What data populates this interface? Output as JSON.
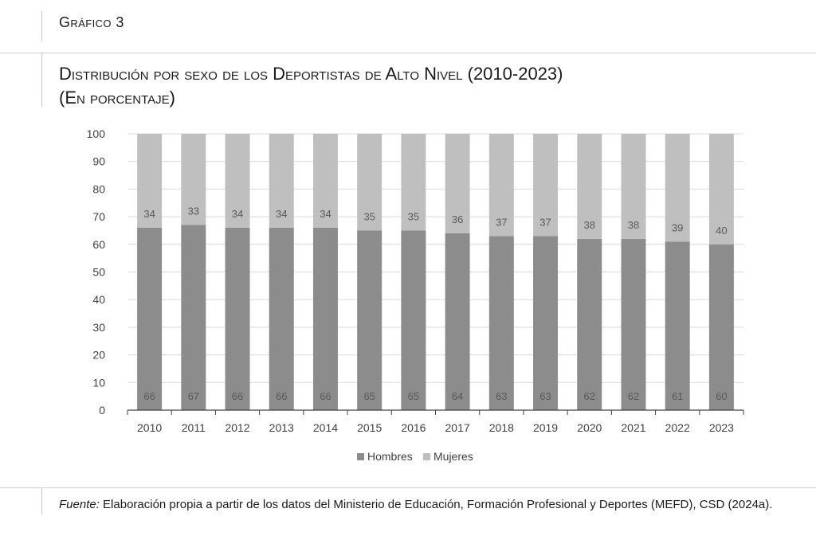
{
  "kicker": "Gráfico 3",
  "title_line1": "Distribución por sexo de los Deportistas de Alto Nivel (2010-2023)",
  "title_line2": "(En porcentaje)",
  "source_prefix": "Fuente:",
  "source_text": " Elaboración propia a partir de los datos del Ministerio de Educación, Formación Profesional y Deportes (MEFD), CSD (2024a).",
  "chart_data": {
    "type": "bar",
    "stacked": true,
    "categories": [
      "2010",
      "2011",
      "2012",
      "2013",
      "2014",
      "2015",
      "2016",
      "2017",
      "2018",
      "2019",
      "2020",
      "2021",
      "2022",
      "2023"
    ],
    "series": [
      {
        "name": "Hombres",
        "color": "#8c8c8c",
        "values": [
          66,
          67,
          66,
          66,
          66,
          65,
          65,
          64,
          63,
          63,
          62,
          62,
          61,
          60
        ]
      },
      {
        "name": "Mujeres",
        "color": "#bfbfbf",
        "values": [
          34,
          33,
          34,
          34,
          34,
          35,
          35,
          36,
          37,
          37,
          38,
          38,
          39,
          40
        ]
      }
    ],
    "ylim": [
      0,
      100
    ],
    "yticks": [
      0,
      10,
      20,
      30,
      40,
      50,
      60,
      70,
      80,
      90,
      100
    ],
    "grid": true,
    "legend": "bottom",
    "xlabel": "",
    "ylabel": ""
  }
}
